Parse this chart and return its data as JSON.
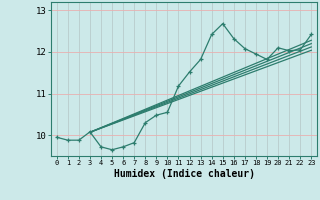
{
  "xlabel": "Humidex (Indice chaleur)",
  "bg_color": "#cce9e9",
  "line_color": "#2d7d6e",
  "grid_color_v": "#c8d8d8",
  "grid_color_h": "#e8b8b8",
  "xlim": [
    -0.5,
    23.5
  ],
  "ylim": [
    9.5,
    13.2
  ],
  "yticks": [
    10,
    11,
    12,
    13
  ],
  "xticks": [
    0,
    1,
    2,
    3,
    4,
    5,
    6,
    7,
    8,
    9,
    10,
    11,
    12,
    13,
    14,
    15,
    16,
    17,
    18,
    19,
    20,
    21,
    22,
    23
  ],
  "main_x": [
    0,
    1,
    2,
    3,
    4,
    5,
    6,
    7,
    8,
    9,
    10,
    11,
    12,
    13,
    14,
    15,
    16,
    17,
    18,
    19,
    20,
    21,
    22,
    23
  ],
  "main_y": [
    9.95,
    9.88,
    9.88,
    10.08,
    9.72,
    9.65,
    9.72,
    9.82,
    10.3,
    10.48,
    10.55,
    11.18,
    11.52,
    11.82,
    12.42,
    12.68,
    12.32,
    12.08,
    11.95,
    11.82,
    12.1,
    12.03,
    12.05,
    12.42
  ],
  "straight_lines": [
    {
      "x0": 3.0,
      "y0": 10.07,
      "x1": 23,
      "y1": 12.28
    },
    {
      "x0": 3.0,
      "y0": 10.07,
      "x1": 23,
      "y1": 12.2
    },
    {
      "x0": 3.0,
      "y0": 10.07,
      "x1": 23,
      "y1": 12.12
    },
    {
      "x0": 3.0,
      "y0": 10.07,
      "x1": 23,
      "y1": 12.04
    }
  ]
}
